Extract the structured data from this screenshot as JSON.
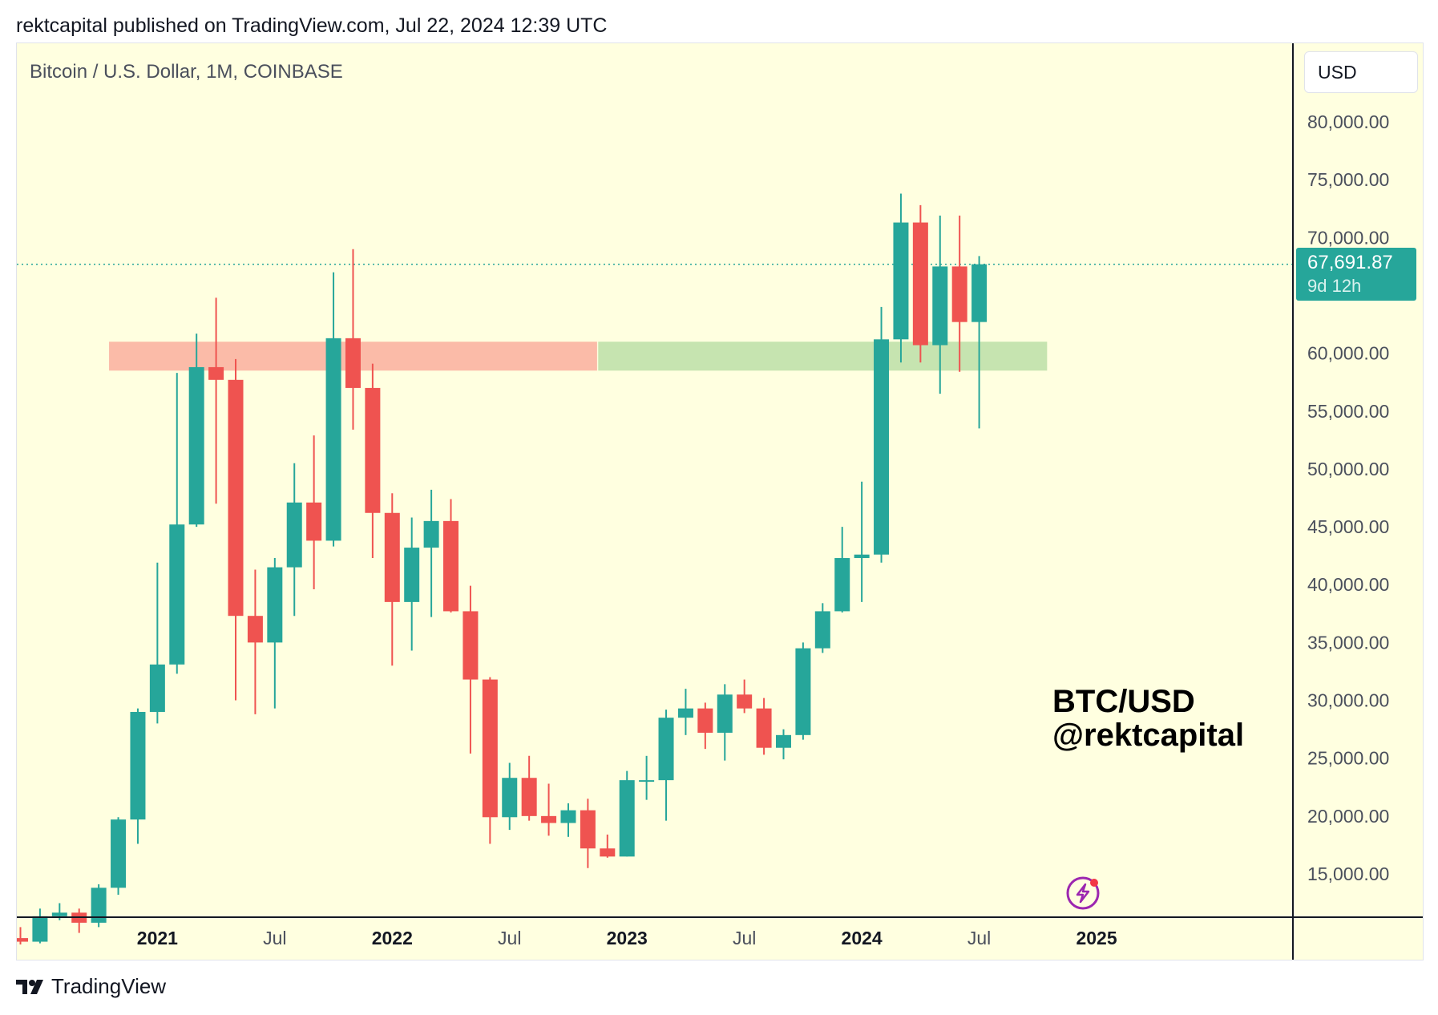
{
  "header": {
    "published": "rektcapital published on TradingView.com, Jul 22, 2024 12:39 UTC"
  },
  "chart_meta": {
    "symbol": "Bitcoin / U.S. Dollar, 1M, COINBASE",
    "currency": "USD",
    "last_price": "67,691.87",
    "countdown": "9d 12h",
    "watermark_line1": "BTC/USD",
    "watermark_line2": "@rektcapital",
    "colors": {
      "up": "#26a69a",
      "down": "#ef5350",
      "background": "#ffffe0",
      "resistance_zone": "#fbbba8",
      "support_zone": "#c6e4b0"
    },
    "icons": [
      "lightning-icon",
      "tradingview-logo-icon"
    ]
  },
  "footer": {
    "brand": "TradingView"
  },
  "chart_data": {
    "type": "candlestick",
    "title": "Bitcoin / U.S. Dollar, 1M, COINBASE",
    "xlabel": "",
    "ylabel": "",
    "ylim": [
      11000,
      85000
    ],
    "y_ticks": [
      {
        "value": 15000,
        "label": "15,000.00"
      },
      {
        "value": 20000,
        "label": "20,000.00"
      },
      {
        "value": 25000,
        "label": "25,000.00"
      },
      {
        "value": 30000,
        "label": "30,000.00"
      },
      {
        "value": 35000,
        "label": "35,000.00"
      },
      {
        "value": 40000,
        "label": "40,000.00"
      },
      {
        "value": 45000,
        "label": "45,000.00"
      },
      {
        "value": 50000,
        "label": "50,000.00"
      },
      {
        "value": 55000,
        "label": "55,000.00"
      },
      {
        "value": 60000,
        "label": "60,000.00"
      },
      {
        "value": 70000,
        "label": "70,000.00"
      },
      {
        "value": 75000,
        "label": "75,000.00"
      },
      {
        "value": 80000,
        "label": "80,000.00"
      }
    ],
    "x_ticks": [
      {
        "label": "2021",
        "at": "2021-01",
        "year": true
      },
      {
        "label": "Jul",
        "at": "2021-07",
        "year": false
      },
      {
        "label": "2022",
        "at": "2022-01",
        "year": true
      },
      {
        "label": "Jul",
        "at": "2022-07",
        "year": false
      },
      {
        "label": "2023",
        "at": "2023-01",
        "year": true
      },
      {
        "label": "Jul",
        "at": "2023-07",
        "year": false
      },
      {
        "label": "2024",
        "at": "2024-01",
        "year": true
      },
      {
        "label": "Jul",
        "at": "2024-07",
        "year": false
      },
      {
        "label": "2025",
        "at": "2025-01",
        "year": true
      }
    ],
    "x_range": [
      "2020-06",
      "2025-06"
    ],
    "last_price": 67691.87,
    "zones": [
      {
        "name": "resistance",
        "from": "2020-11",
        "to": "2022-11",
        "low": 58500,
        "high": 61000
      },
      {
        "name": "support",
        "from": "2022-12",
        "to": "2024-10",
        "low": 58500,
        "high": 61000
      }
    ],
    "candles": [
      {
        "date": "2020-06",
        "open": 9450,
        "high": 10400,
        "low": 8900,
        "close": 9140
      },
      {
        "date": "2020-07",
        "open": 9140,
        "high": 12000,
        "low": 9000,
        "close": 11340
      },
      {
        "date": "2020-08",
        "open": 11340,
        "high": 12470,
        "low": 11000,
        "close": 11650
      },
      {
        "date": "2020-09",
        "open": 11650,
        "high": 12000,
        "low": 9900,
        "close": 10780
      },
      {
        "date": "2020-10",
        "open": 10780,
        "high": 14100,
        "low": 10400,
        "close": 13800
      },
      {
        "date": "2020-11",
        "open": 13800,
        "high": 19900,
        "low": 13200,
        "close": 19700
      },
      {
        "date": "2020-12",
        "open": 19700,
        "high": 29300,
        "low": 17600,
        "close": 29000
      },
      {
        "date": "2021-01",
        "open": 29000,
        "high": 41900,
        "low": 28000,
        "close": 33100
      },
      {
        "date": "2021-02",
        "open": 33100,
        "high": 58300,
        "low": 32300,
        "close": 45200
      },
      {
        "date": "2021-03",
        "open": 45200,
        "high": 61700,
        "low": 45000,
        "close": 58800
      },
      {
        "date": "2021-04",
        "open": 58800,
        "high": 64800,
        "low": 47000,
        "close": 57700
      },
      {
        "date": "2021-05",
        "open": 57700,
        "high": 59500,
        "low": 30000,
        "close": 37300
      },
      {
        "date": "2021-06",
        "open": 37300,
        "high": 41300,
        "low": 28800,
        "close": 35000
      },
      {
        "date": "2021-07",
        "open": 35000,
        "high": 42300,
        "low": 29300,
        "close": 41500
      },
      {
        "date": "2021-08",
        "open": 41500,
        "high": 50500,
        "low": 37300,
        "close": 47100
      },
      {
        "date": "2021-09",
        "open": 47100,
        "high": 52900,
        "low": 39600,
        "close": 43800
      },
      {
        "date": "2021-10",
        "open": 43800,
        "high": 67000,
        "low": 43300,
        "close": 61300
      },
      {
        "date": "2021-11",
        "open": 61300,
        "high": 69000,
        "low": 53400,
        "close": 57000
      },
      {
        "date": "2021-12",
        "open": 57000,
        "high": 59100,
        "low": 42300,
        "close": 46200
      },
      {
        "date": "2022-01",
        "open": 46200,
        "high": 47900,
        "low": 33000,
        "close": 38500
      },
      {
        "date": "2022-02",
        "open": 38500,
        "high": 45800,
        "low": 34300,
        "close": 43200
      },
      {
        "date": "2022-03",
        "open": 43200,
        "high": 48200,
        "low": 37200,
        "close": 45500
      },
      {
        "date": "2022-04",
        "open": 45500,
        "high": 47400,
        "low": 37600,
        "close": 37700
      },
      {
        "date": "2022-05",
        "open": 37700,
        "high": 39900,
        "low": 25400,
        "close": 31800
      },
      {
        "date": "2022-06",
        "open": 31800,
        "high": 32000,
        "low": 17600,
        "close": 19900
      },
      {
        "date": "2022-07",
        "open": 19900,
        "high": 24600,
        "low": 18800,
        "close": 23300
      },
      {
        "date": "2022-08",
        "open": 23300,
        "high": 25200,
        "low": 19600,
        "close": 20000
      },
      {
        "date": "2022-09",
        "open": 20000,
        "high": 22800,
        "low": 18300,
        "close": 19400
      },
      {
        "date": "2022-10",
        "open": 19400,
        "high": 21100,
        "low": 18200,
        "close": 20500
      },
      {
        "date": "2022-11",
        "open": 20500,
        "high": 21500,
        "low": 15500,
        "close": 17200
      },
      {
        "date": "2022-12",
        "open": 17200,
        "high": 18400,
        "low": 16400,
        "close": 16500
      },
      {
        "date": "2023-01",
        "open": 16500,
        "high": 23900,
        "low": 16500,
        "close": 23100
      },
      {
        "date": "2023-02",
        "open": 23100,
        "high": 25200,
        "low": 21400,
        "close": 23100
      },
      {
        "date": "2023-03",
        "open": 23100,
        "high": 29200,
        "low": 19600,
        "close": 28500
      },
      {
        "date": "2023-04",
        "open": 28500,
        "high": 31000,
        "low": 27000,
        "close": 29300
      },
      {
        "date": "2023-05",
        "open": 29300,
        "high": 29800,
        "low": 25800,
        "close": 27200
      },
      {
        "date": "2023-06",
        "open": 27200,
        "high": 31400,
        "low": 24800,
        "close": 30500
      },
      {
        "date": "2023-07",
        "open": 30500,
        "high": 31800,
        "low": 28900,
        "close": 29300
      },
      {
        "date": "2023-08",
        "open": 29300,
        "high": 30200,
        "low": 25300,
        "close": 25900
      },
      {
        "date": "2023-09",
        "open": 25900,
        "high": 27500,
        "low": 24900,
        "close": 27000
      },
      {
        "date": "2023-10",
        "open": 27000,
        "high": 35000,
        "low": 26600,
        "close": 34500
      },
      {
        "date": "2023-11",
        "open": 34500,
        "high": 38400,
        "low": 34100,
        "close": 37700
      },
      {
        "date": "2023-12",
        "open": 37700,
        "high": 45000,
        "low": 37600,
        "close": 42300
      },
      {
        "date": "2024-01",
        "open": 42300,
        "high": 48900,
        "low": 38500,
        "close": 42600
      },
      {
        "date": "2024-02",
        "open": 42600,
        "high": 64000,
        "low": 41900,
        "close": 61200
      },
      {
        "date": "2024-03",
        "open": 61200,
        "high": 73800,
        "low": 59200,
        "close": 71300
      },
      {
        "date": "2024-04",
        "open": 71300,
        "high": 72800,
        "low": 59200,
        "close": 60700
      },
      {
        "date": "2024-05",
        "open": 60700,
        "high": 71900,
        "low": 56500,
        "close": 67500
      },
      {
        "date": "2024-06",
        "open": 67500,
        "high": 71900,
        "low": 58400,
        "close": 62700
      },
      {
        "date": "2024-07",
        "open": 62700,
        "high": 68400,
        "low": 53500,
        "close": 67692
      }
    ]
  }
}
